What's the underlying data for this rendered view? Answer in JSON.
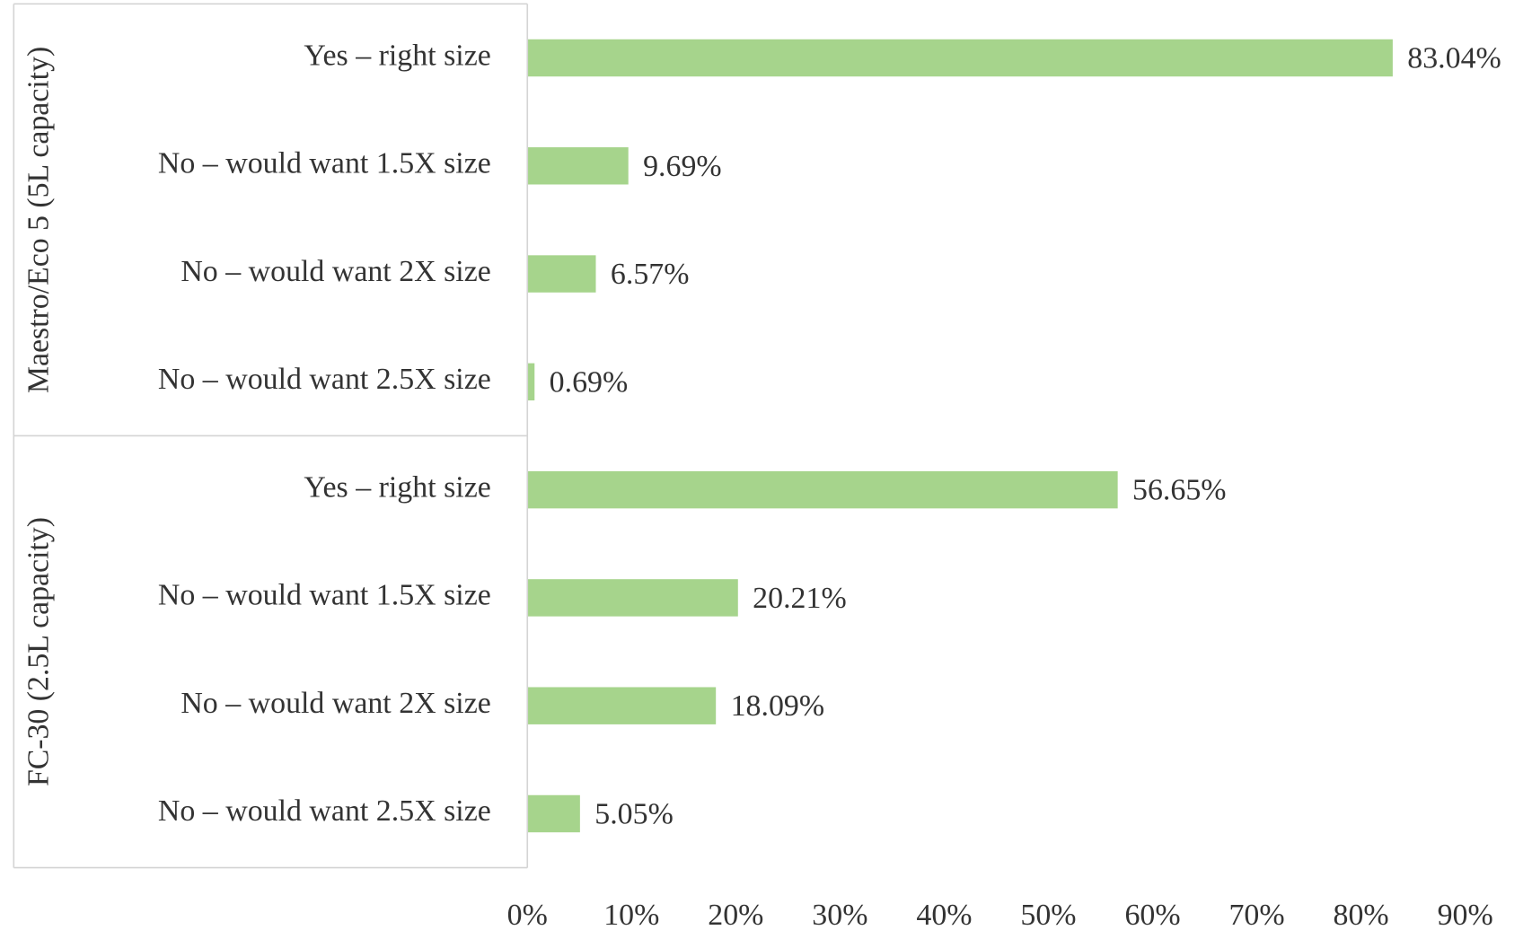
{
  "chart_data": {
    "type": "bar",
    "orientation": "horizontal",
    "color": "#a6d48c",
    "groups": [
      {
        "name": "Maestro/Eco 5 (5L capacity)",
        "categories": [
          "Yes – right size",
          "No – would want 1.5X size",
          "No – would want 2X size",
          "No – would want 2.5X size"
        ],
        "values": [
          83.04,
          9.69,
          6.57,
          0.69
        ],
        "value_labels": [
          "83.04%",
          "9.69%",
          "6.57%",
          "0.69%"
        ]
      },
      {
        "name": "FC-30 (2.5L capacity)",
        "categories": [
          "Yes – right size",
          "No – would want 1.5X size",
          "No – would want 2X size",
          "No – would want 2.5X size"
        ],
        "values": [
          56.65,
          20.21,
          18.09,
          5.05
        ],
        "value_labels": [
          "56.65%",
          "20.21%",
          "18.09%",
          "5.05%"
        ]
      }
    ],
    "xlim": [
      0,
      90
    ],
    "xticks": [
      {
        "value": 0,
        "label": "0%"
      },
      {
        "value": 10,
        "label": "10%"
      },
      {
        "value": 20,
        "label": "20%"
      },
      {
        "value": 30,
        "label": "30%"
      },
      {
        "value": 40,
        "label": "40%"
      },
      {
        "value": 50,
        "label": "50%"
      },
      {
        "value": 60,
        "label": "60%"
      },
      {
        "value": 70,
        "label": "70%"
      },
      {
        "value": 80,
        "label": "80%"
      },
      {
        "value": 90,
        "label": "90%"
      }
    ]
  }
}
